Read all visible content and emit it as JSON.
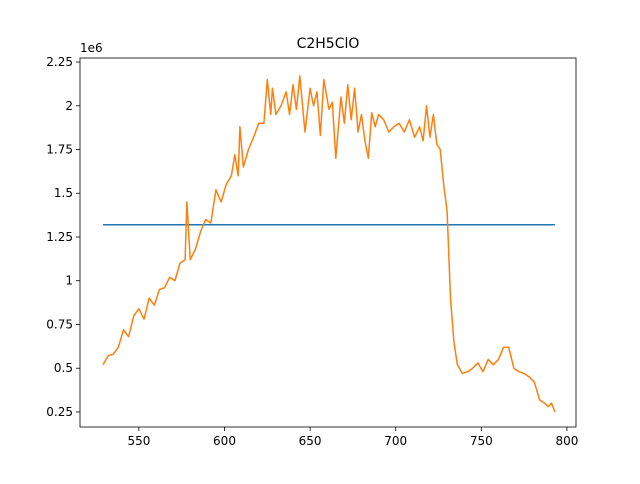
{
  "chart_data": {
    "type": "line",
    "title": "C2H5ClO",
    "y_offset_label": "1e6",
    "xlim": [
      515.6,
      805.3
    ],
    "xticks": [
      550,
      600,
      650,
      700,
      750,
      800
    ],
    "ylim": [
      0.164,
      2.273
    ],
    "yticks": [
      0.25,
      0.5,
      0.75,
      1.0,
      1.25,
      1.5,
      1.75,
      2.0,
      2.25
    ],
    "series": [
      {
        "color": "#1f77b4",
        "x": [
          529,
          793
        ],
        "values": [
          1.32,
          1.32
        ]
      },
      {
        "color": "#ff7f0e",
        "x": [
          529,
          532,
          535,
          538,
          541,
          544,
          547,
          550,
          553,
          556,
          559,
          562,
          565,
          568,
          571,
          574,
          577,
          578,
          580,
          583,
          586,
          589,
          592,
          595,
          598,
          601,
          604,
          606,
          608,
          609,
          611,
          614,
          617,
          620,
          623,
          625,
          627,
          628,
          630,
          633,
          636,
          638,
          640,
          642,
          644,
          647,
          650,
          652,
          654,
          656,
          658,
          661,
          663,
          665,
          668,
          670,
          672,
          674,
          676,
          678,
          680,
          682,
          684,
          686,
          688,
          690,
          693,
          696,
          699,
          702,
          705,
          708,
          711,
          714,
          716,
          718,
          720,
          722,
          724,
          726,
          728,
          730,
          732,
          734,
          736,
          739,
          742,
          745,
          748,
          751,
          754,
          757,
          760,
          763,
          766,
          769,
          772,
          775,
          778,
          781,
          784,
          787,
          789,
          791,
          793
        ],
        "values": [
          0.52,
          0.57,
          0.58,
          0.62,
          0.72,
          0.68,
          0.8,
          0.84,
          0.78,
          0.9,
          0.86,
          0.95,
          0.96,
          1.02,
          1.0,
          1.1,
          1.12,
          1.45,
          1.12,
          1.18,
          1.28,
          1.35,
          1.33,
          1.52,
          1.45,
          1.55,
          1.6,
          1.72,
          1.6,
          1.88,
          1.65,
          1.75,
          1.82,
          1.9,
          1.9,
          2.15,
          1.95,
          2.1,
          1.95,
          2.0,
          2.08,
          1.95,
          2.12,
          1.98,
          2.17,
          1.85,
          2.1,
          2.0,
          2.08,
          1.83,
          2.15,
          1.98,
          2.02,
          1.7,
          2.05,
          1.9,
          2.12,
          1.92,
          2.1,
          1.85,
          1.95,
          1.8,
          1.7,
          1.96,
          1.88,
          1.95,
          1.92,
          1.85,
          1.88,
          1.9,
          1.85,
          1.92,
          1.82,
          1.88,
          1.8,
          2.0,
          1.82,
          1.95,
          1.78,
          1.75,
          1.55,
          1.4,
          0.9,
          0.65,
          0.52,
          0.47,
          0.48,
          0.5,
          0.53,
          0.48,
          0.55,
          0.52,
          0.55,
          0.62,
          0.62,
          0.5,
          0.48,
          0.47,
          0.45,
          0.42,
          0.32,
          0.3,
          0.28,
          0.3,
          0.25
        ]
      }
    ]
  }
}
